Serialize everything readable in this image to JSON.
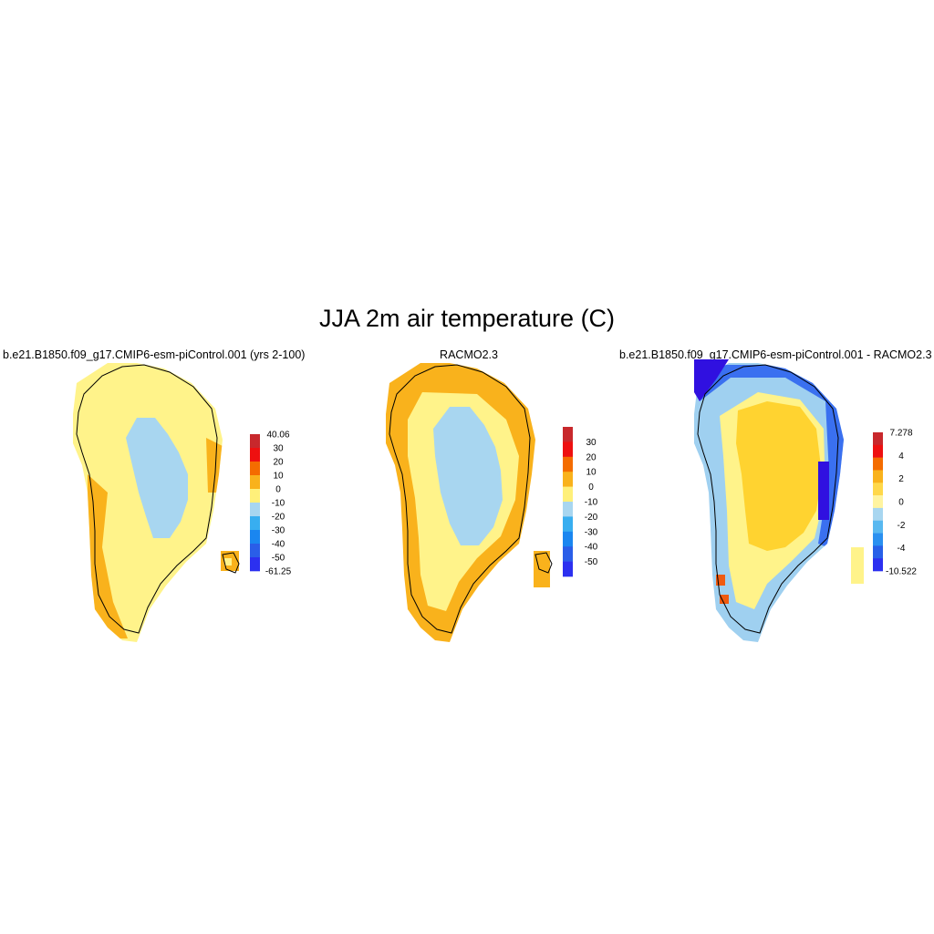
{
  "figure": {
    "title": "JJA 2m air temperature (C)"
  },
  "panels": [
    {
      "title": "b.e21.B1850.f09_g17.CMIP6-esm-piControl.001 (yrs 2-100)",
      "colorbar": {
        "labels": [
          "40.06",
          "30",
          "20",
          "10",
          "0",
          "-10",
          "-20",
          "-30",
          "-40",
          "-50",
          "-61.25"
        ],
        "colors": [
          "#c8282c",
          "#ee1010",
          "#f46c00",
          "#f9b21c",
          "#fff07a",
          "#a8d6f0",
          "#38aef0",
          "#1a86f0",
          "#2a5ee8",
          "#2c30f0"
        ]
      }
    },
    {
      "title": "RACMO2.3",
      "colorbar": {
        "labels": [
          "30",
          "20",
          "10",
          "0",
          "-10",
          "-20",
          "-30",
          "-40",
          "-50"
        ],
        "colors": [
          "#c8282c",
          "#ee1010",
          "#f46c00",
          "#f9b21c",
          "#fff07a",
          "#a8d6f0",
          "#38aef0",
          "#1a86f0",
          "#2a5ee8",
          "#2c30f0"
        ]
      }
    },
    {
      "title": "b.e21.B1850.f09_g17.CMIP6-esm-piControl.001 - RACMO2.3",
      "colorbar": {
        "labels": [
          "7.278",
          "4",
          "2",
          "0",
          "-2",
          "-4",
          "-10.522"
        ],
        "colors": [
          "#c8282c",
          "#ee1010",
          "#f46c00",
          "#f9b21c",
          "#ffd84a",
          "#fff4a0",
          "#a8d6f0",
          "#58b8f0",
          "#2a90f0",
          "#2860e8",
          "#2c30f0"
        ]
      }
    }
  ],
  "fields": {
    "mild": "#fff38a",
    "warm": "#f9b21c",
    "cold": "#a8d6f0",
    "diff_core": "#ffd330",
    "diff_blue": "#3a70f0",
    "diff_deep": "#3010e0",
    "diff_light": "#9fd0f0",
    "diff_red": "#f05a10",
    "coast": "#000000"
  }
}
